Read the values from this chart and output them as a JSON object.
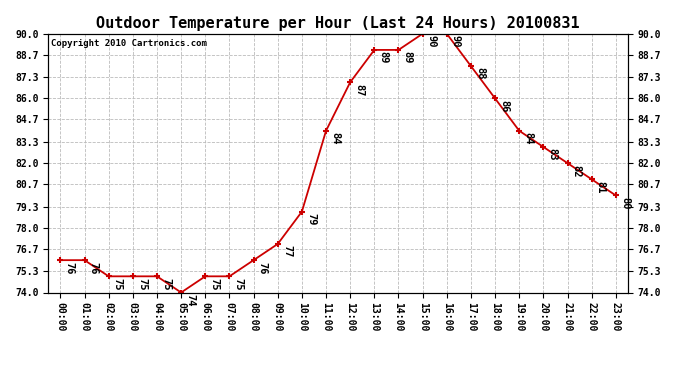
{
  "title": "Outdoor Temperature per Hour (Last 24 Hours) 20100831",
  "copyright": "Copyright 2010 Cartronics.com",
  "hours": [
    "00:00",
    "01:00",
    "02:00",
    "03:00",
    "04:00",
    "05:00",
    "06:00",
    "07:00",
    "08:00",
    "09:00",
    "10:00",
    "11:00",
    "12:00",
    "13:00",
    "14:00",
    "15:00",
    "16:00",
    "17:00",
    "18:00",
    "19:00",
    "20:00",
    "21:00",
    "22:00",
    "23:00"
  ],
  "temps": [
    76,
    76,
    75,
    75,
    75,
    74,
    75,
    75,
    76,
    77,
    79,
    84,
    87,
    89,
    89,
    90,
    90,
    88,
    86,
    84,
    83,
    82,
    81,
    80
  ],
  "line_color": "#cc0000",
  "marker": "+",
  "marker_color": "#cc0000",
  "bg_color": "#ffffff",
  "grid_color": "#bbbbbb",
  "grid_style": "--",
  "ylim": [
    74.0,
    90.0
  ],
  "yticks": [
    74.0,
    75.3,
    76.7,
    78.0,
    79.3,
    80.7,
    82.0,
    83.3,
    84.7,
    86.0,
    87.3,
    88.7,
    90.0
  ],
  "title_fontsize": 11,
  "label_fontsize": 7,
  "annotation_fontsize": 7.5,
  "copyright_fontsize": 6.5
}
